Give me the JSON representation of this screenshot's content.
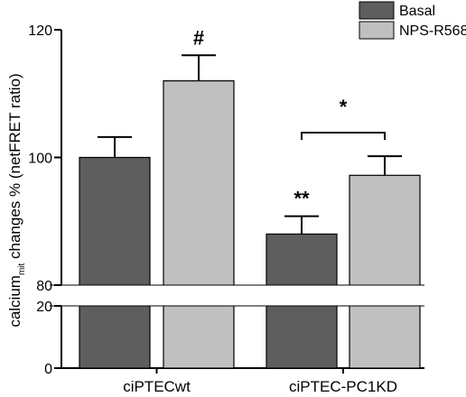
{
  "chart_data": {
    "type": "bar",
    "categories": [
      "ciPTECwt",
      "ciPTEC-PC1KD"
    ],
    "series": [
      {
        "name": "Basal",
        "color": "#5e5e5e",
        "values": [
          100,
          88
        ],
        "errors": [
          3.2,
          2.8
        ]
      },
      {
        "name": "NPS-R568",
        "color": "#c0c0c0",
        "values": [
          112,
          97.2
        ],
        "errors": [
          4.0,
          3.0
        ]
      }
    ],
    "ylabel": "calcium_mit changes % (netFRET ratio)",
    "ylabel_parts": {
      "pre": "calcium",
      "sub": "mit",
      "post": " changes % (netFRET ratio)"
    },
    "y_axis_broken": true,
    "lower_segment": {
      "ylim": [
        0,
        20
      ],
      "ticks": [
        0,
        20
      ]
    },
    "upper_segment": {
      "ylim": [
        80,
        120
      ],
      "ticks": [
        80,
        100,
        120
      ]
    },
    "annotations": [
      {
        "text": "#",
        "category": 0,
        "series": 1
      },
      {
        "text": "**",
        "category": 1,
        "series": 0
      },
      {
        "text": "*",
        "bracket": true,
        "category": 1
      }
    ],
    "legend_position": "top-right",
    "grid": false
  }
}
